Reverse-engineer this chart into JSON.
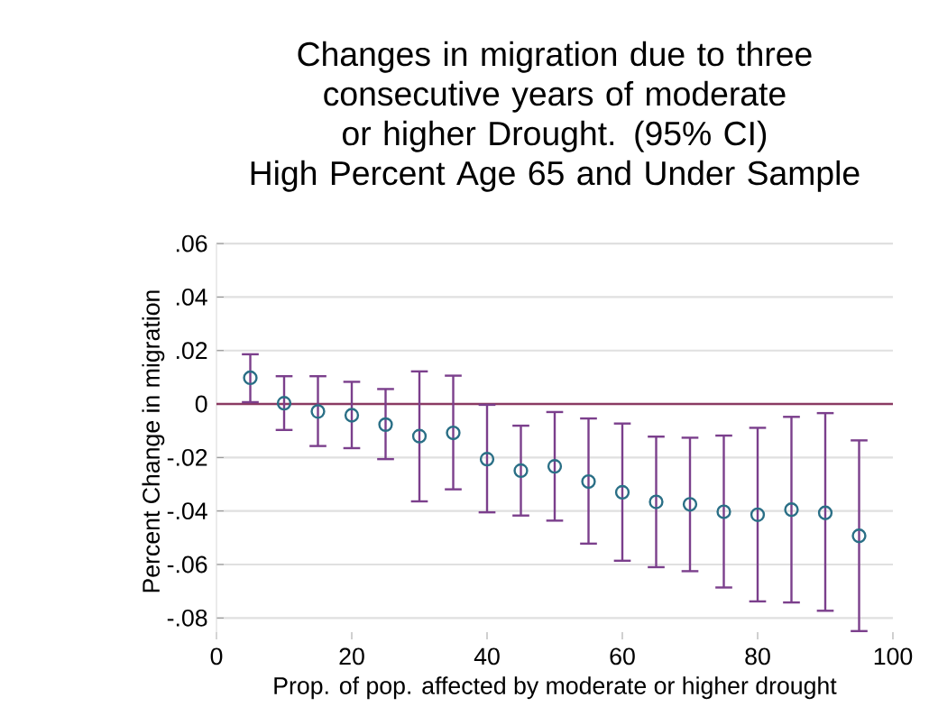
{
  "chart_data": {
    "type": "scatter",
    "title": "Changes in migration due to three consecutive years of moderate or higher Drought. (95% CI)",
    "subtitle": "High Percent Age 65 and Under Sample",
    "xlabel": "Prop. of pop. affected by moderate or higher drought",
    "ylabel": "Percent Change in migration",
    "x": [
      5,
      10,
      15,
      20,
      25,
      30,
      35,
      40,
      45,
      50,
      55,
      60,
      65,
      70,
      75,
      80,
      85,
      90,
      95
    ],
    "series": [
      {
        "color": "#2a6f86",
        "values": [
          0.0098,
          0.0003,
          -0.0028,
          -0.0042,
          -0.0077,
          -0.012,
          -0.0108,
          -0.0206,
          -0.0249,
          -0.0233,
          -0.029,
          -0.033,
          -0.0366,
          -0.0375,
          -0.0403,
          -0.0414,
          -0.0395,
          -0.0407,
          -0.0493
        ],
        "errors": [
          [
            0.0007,
            0.0186
          ],
          [
            -0.0097,
            0.0104
          ],
          [
            -0.0157,
            0.0104
          ],
          [
            -0.0165,
            0.0083
          ],
          [
            -0.0206,
            0.0056
          ],
          [
            -0.0364,
            0.0122
          ],
          [
            -0.0319,
            0.0106
          ],
          [
            -0.0405,
            -0.0003
          ],
          [
            -0.0417,
            -0.0081
          ],
          [
            -0.0436,
            -0.003
          ],
          [
            -0.0522,
            -0.0054
          ],
          [
            -0.0586,
            -0.0073
          ],
          [
            -0.061,
            -0.0122
          ],
          [
            -0.0625,
            -0.0126
          ],
          [
            -0.0686,
            -0.0118
          ],
          [
            -0.0738,
            -0.0089
          ],
          [
            -0.0742,
            -0.0048
          ],
          [
            -0.0773,
            -0.0034
          ],
          [
            -0.0849,
            -0.0136
          ]
        ]
      }
    ],
    "xlim": [
      0,
      100
    ],
    "ylim": [
      -0.088,
      0.06
    ],
    "xticks": [
      0,
      20,
      40,
      60,
      80,
      100
    ],
    "yticks": [
      {
        "value": -0.08,
        "label": "-.08"
      },
      {
        "value": -0.06,
        "label": "-.06"
      },
      {
        "value": -0.04,
        "label": "-.04"
      },
      {
        "value": -0.02,
        "label": "-.02"
      },
      0,
      {
        "value": 0.02,
        "label": ".02"
      },
      {
        "value": 0.04,
        "label": ".04"
      },
      {
        "value": 0.06,
        "label": ".06"
      }
    ],
    "grid": "y",
    "marker": "circle",
    "ref_lines": [
      {
        "axis": "y",
        "value": 0,
        "color": "#8b3a62"
      }
    ]
  }
}
